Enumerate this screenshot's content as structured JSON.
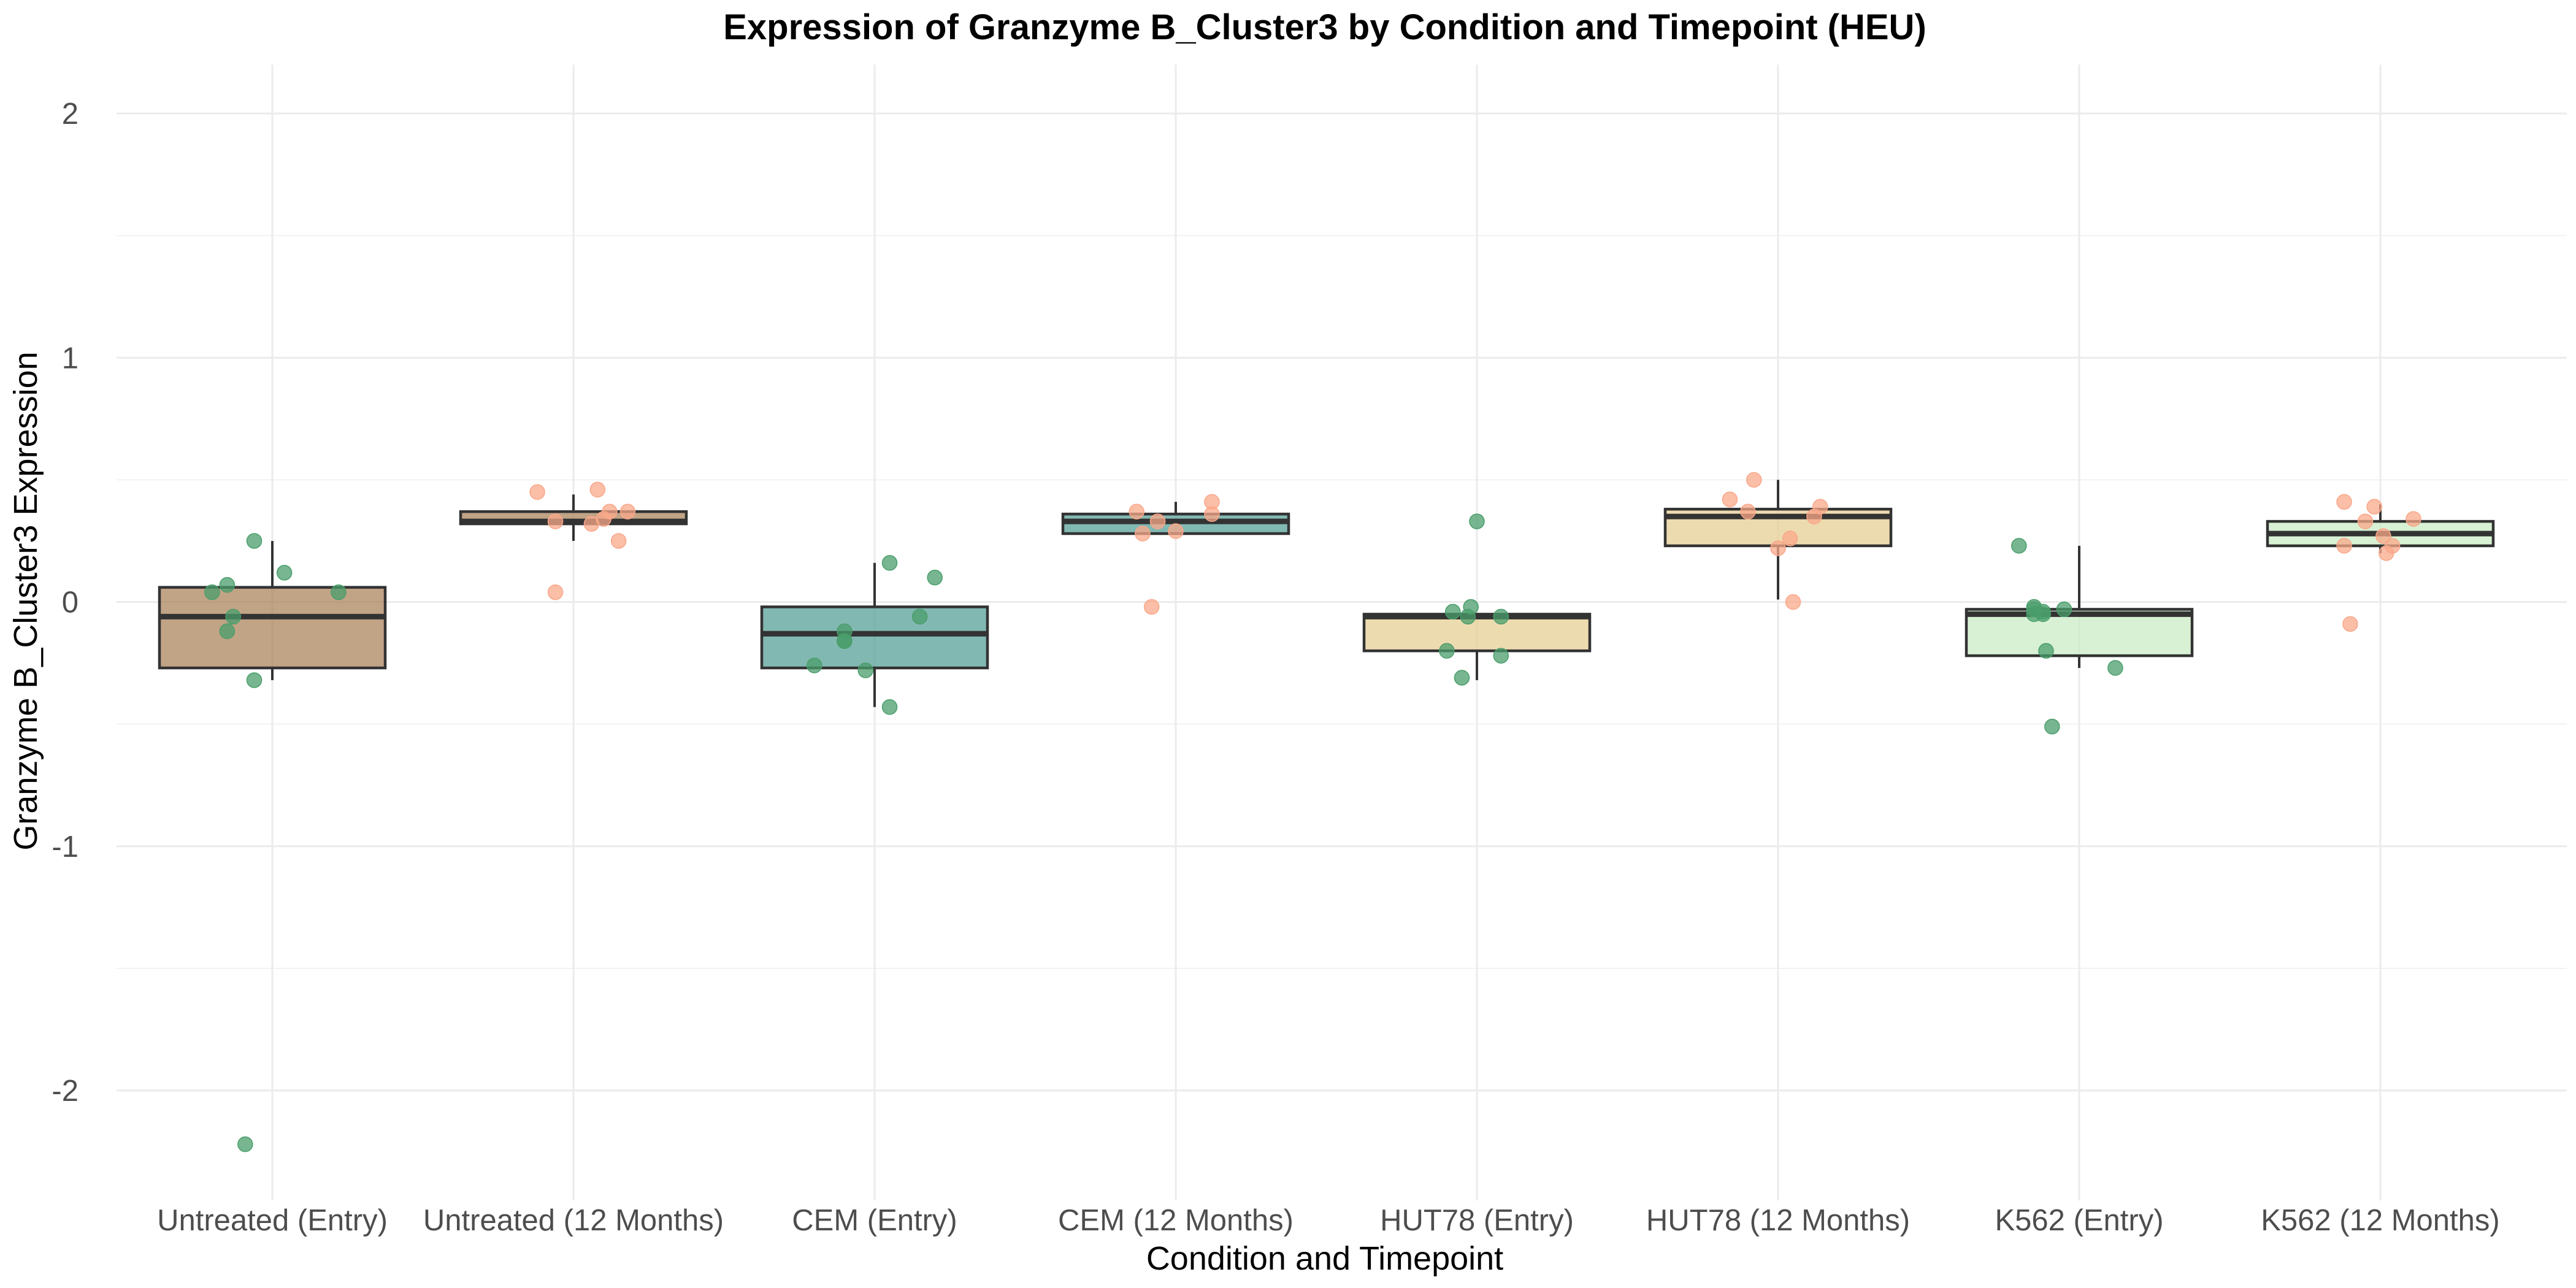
{
  "chart_data": {
    "type": "box",
    "title": "Expression of Granzyme B_Cluster3 by Condition and Timepoint (HEU)",
    "xlabel": "Condition and Timepoint",
    "ylabel": "Granzyme B_Cluster3 Expression",
    "ylim": [
      -2.45,
      2.2
    ],
    "yticks": [
      -2,
      -1,
      0,
      1,
      2
    ],
    "ytick_labels": [
      "-2",
      "-1",
      "0",
      "1",
      "2"
    ],
    "grid": true,
    "legend": "none",
    "categories": [
      "Untreated (Entry)",
      "Untreated (12 Months)",
      "CEM (Entry)",
      "CEM (12 Months)",
      "HUT78 (Entry)",
      "HUT78 (12 Months)",
      "K562 (Entry)",
      "K562 (12 Months)"
    ],
    "boxes": [
      {
        "q1": -0.27,
        "median": -0.06,
        "q3": 0.06,
        "whisker_low": -0.32,
        "whisker_high": 0.25,
        "fill": "#a67c52"
      },
      {
        "q1": 0.32,
        "median": 0.33,
        "q3": 0.37,
        "whisker_low": 0.25,
        "whisker_high": 0.44,
        "fill": "#a67c52"
      },
      {
        "q1": -0.27,
        "median": -0.13,
        "q3": -0.02,
        "whisker_low": -0.43,
        "whisker_high": 0.16,
        "fill": "#4d9a91"
      },
      {
        "q1": 0.28,
        "median": 0.33,
        "q3": 0.36,
        "whisker_low": 0.28,
        "whisker_high": 0.41,
        "fill": "#4d9a91"
      },
      {
        "q1": -0.2,
        "median": -0.06,
        "q3": -0.05,
        "whisker_low": -0.32,
        "whisker_high": -0.05,
        "fill": "#e6cc8f"
      },
      {
        "q1": 0.23,
        "median": 0.35,
        "q3": 0.38,
        "whisker_low": 0.01,
        "whisker_high": 0.5,
        "fill": "#e6cc8f"
      },
      {
        "q1": -0.22,
        "median": -0.05,
        "q3": -0.03,
        "whisker_low": -0.27,
        "whisker_high": 0.23,
        "fill": "#c7ebc2"
      },
      {
        "q1": 0.23,
        "median": 0.28,
        "q3": 0.33,
        "whisker_low": 0.2,
        "whisker_high": 0.4,
        "fill": "#c7ebc2"
      }
    ],
    "points": [
      {
        "group": 0,
        "color": "#4a9e6b",
        "x": [
          -0.06,
          0.04,
          -0.2,
          -0.15,
          -0.13,
          -0.15,
          -0.06,
          0.22,
          -0.09
        ],
        "y": [
          0.25,
          0.12,
          0.04,
          0.07,
          -0.06,
          -0.12,
          -0.32,
          0.04,
          -2.22
        ]
      },
      {
        "group": 1,
        "color": "#f9a88a",
        "x": [
          0.08,
          -0.12,
          0.12,
          0.18,
          0.1,
          0.06,
          0.15,
          -0.06,
          -0.06
        ],
        "y": [
          0.46,
          0.45,
          0.37,
          0.37,
          0.34,
          0.32,
          0.25,
          0.33,
          0.04
        ]
      },
      {
        "group": 2,
        "color": "#4a9e6b",
        "x": [
          0.05,
          0.2,
          0.15,
          -0.1,
          -0.1,
          -0.2,
          -0.03,
          0.05,
          -0.1
        ],
        "y": [
          0.16,
          0.1,
          -0.06,
          -0.12,
          -0.16,
          -0.26,
          -0.28,
          -0.43,
          -0.16
        ]
      },
      {
        "group": 3,
        "color": "#f9a88a",
        "x": [
          0.12,
          -0.13,
          0.12,
          -0.11,
          0.0,
          -0.08,
          -0.06
        ],
        "y": [
          0.41,
          0.37,
          0.36,
          0.28,
          0.29,
          -0.02,
          0.33
        ]
      },
      {
        "group": 4,
        "color": "#4a9e6b",
        "x": [
          0.0,
          -0.02,
          -0.1,
          0.08,
          -0.05,
          -0.08,
          -0.03,
          0.08
        ],
        "y": [
          0.33,
          -0.02,
          -0.2,
          -0.22,
          -0.31,
          -0.04,
          -0.06,
          -0.06
        ]
      },
      {
        "group": 5,
        "color": "#f9a88a",
        "x": [
          -0.08,
          -0.16,
          0.14,
          -0.1,
          0.04,
          0.0,
          0.12,
          0.05
        ],
        "y": [
          0.5,
          0.42,
          0.39,
          0.37,
          0.26,
          0.22,
          0.35,
          0.0
        ]
      },
      {
        "group": 6,
        "color": "#4a9e6b",
        "x": [
          -0.2,
          -0.15,
          -0.12,
          -0.15,
          -0.05,
          -0.11,
          -0.12,
          0.12,
          -0.09,
          -0.15
        ],
        "y": [
          0.23,
          -0.02,
          -0.04,
          -0.05,
          -0.03,
          -0.2,
          -0.05,
          -0.27,
          -0.51,
          -0.03
        ]
      },
      {
        "group": 7,
        "color": "#f9a88a",
        "x": [
          -0.12,
          -0.02,
          -0.05,
          0.11,
          0.01,
          0.04,
          0.02,
          -0.12,
          -0.1
        ],
        "y": [
          0.41,
          0.39,
          0.33,
          0.34,
          0.27,
          0.23,
          0.2,
          0.23,
          -0.09
        ]
      }
    ]
  }
}
